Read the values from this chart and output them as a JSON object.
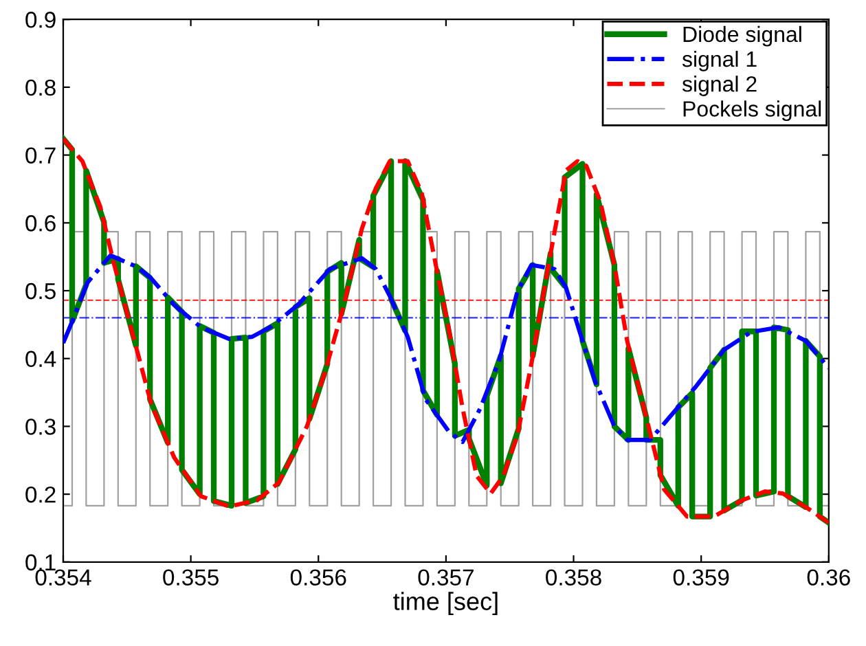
{
  "chart_data": {
    "type": "line",
    "xlabel": "time [sec]",
    "xlim": [
      0.354,
      0.36
    ],
    "xticks": [
      0.354,
      0.355,
      0.356,
      0.357,
      0.358,
      0.359,
      0.36
    ],
    "ylim": [
      0.1,
      0.9
    ],
    "yticks": [
      0.1,
      0.2,
      0.3,
      0.4,
      0.5,
      0.6,
      0.7,
      0.8,
      0.9
    ],
    "grid": false,
    "legend": "top right",
    "ref_lines": [
      {
        "axis": "y",
        "value": 0.486,
        "color": "#ff0000",
        "line_style": "dashed"
      },
      {
        "axis": "y",
        "value": 0.46,
        "color": "#0000ff",
        "line_style": "dashdot"
      }
    ],
    "series": [
      {
        "name": "Diode signal",
        "color": "#008000",
        "line_style": "solid",
        "x": [
          0.354,
          0.35407,
          0.35407,
          0.35418,
          0.35418,
          0.35432,
          0.35432,
          0.35443,
          0.35443,
          0.35457,
          0.35457,
          0.35468,
          0.35468,
          0.35482,
          0.35482,
          0.35493,
          0.35493,
          0.35507,
          0.35507,
          0.35518,
          0.35518,
          0.35532,
          0.35532,
          0.35543,
          0.35543,
          0.35557,
          0.35557,
          0.35568,
          0.35568,
          0.35582,
          0.35582,
          0.35593,
          0.35593,
          0.35607,
          0.35607,
          0.35618,
          0.35618,
          0.35632,
          0.35632,
          0.35643,
          0.35643,
          0.35657,
          0.35657,
          0.35668,
          0.35668,
          0.35682,
          0.35682,
          0.35693,
          0.35693,
          0.35707,
          0.35707,
          0.35718,
          0.35718,
          0.35732,
          0.35732,
          0.35743,
          0.35743,
          0.35757,
          0.35757,
          0.35768,
          0.35768,
          0.35782,
          0.35782,
          0.35793,
          0.35793,
          0.35807,
          0.35807,
          0.35818,
          0.35818,
          0.35832,
          0.35832,
          0.35843,
          0.35843,
          0.35857,
          0.35857,
          0.35868,
          0.35868,
          0.35882,
          0.35882,
          0.35893,
          0.35893,
          0.35907,
          0.35907,
          0.35918,
          0.35918,
          0.35932,
          0.35932,
          0.35943,
          0.35943,
          0.35957,
          0.35957,
          0.35968,
          0.35968,
          0.35982,
          0.35982,
          0.35993,
          0.35993,
          0.36
        ],
        "values": [
          0.724,
          0.708,
          0.455,
          0.509,
          0.677,
          0.601,
          0.541,
          0.547,
          0.517,
          0.419,
          0.536,
          0.519,
          0.34,
          0.276,
          0.49,
          0.469,
          0.236,
          0.2,
          0.448,
          0.438,
          0.19,
          0.183,
          0.429,
          0.431,
          0.187,
          0.197,
          0.44,
          0.452,
          0.215,
          0.266,
          0.476,
          0.489,
          0.311,
          0.392,
          0.528,
          0.541,
          0.466,
          0.575,
          0.548,
          0.535,
          0.64,
          0.691,
          0.488,
          0.441,
          0.691,
          0.634,
          0.353,
          0.317,
          0.529,
          0.392,
          0.286,
          0.295,
          0.282,
          0.213,
          0.345,
          0.404,
          0.216,
          0.297,
          0.503,
          0.538,
          0.404,
          0.555,
          0.533,
          0.507,
          0.667,
          0.687,
          0.426,
          0.362,
          0.642,
          0.538,
          0.3,
          0.28,
          0.415,
          0.313,
          0.28,
          0.28,
          0.228,
          0.183,
          0.328,
          0.349,
          0.167,
          0.167,
          0.386,
          0.413,
          0.176,
          0.191,
          0.44,
          0.44,
          0.198,
          0.204,
          0.446,
          0.442,
          0.197,
          0.181,
          0.426,
          0.403,
          0.167,
          0.158
        ]
      },
      {
        "name": "signal 1",
        "color": "#0000ff",
        "line_style": "dashdot",
        "x": [
          0.354,
          0.35408,
          0.35419,
          0.35437,
          0.35458,
          0.35469,
          0.35487,
          0.35508,
          0.3553,
          0.35548,
          0.35562,
          0.35584,
          0.35609,
          0.35634,
          0.35645,
          0.35656,
          0.3567,
          0.35684,
          0.35702,
          0.35713,
          0.35727,
          0.35742,
          0.35756,
          0.35767,
          0.35785,
          0.35794,
          0.35806,
          0.35817,
          0.35832,
          0.35842,
          0.3586,
          0.35875,
          0.35896,
          0.35918,
          0.35939,
          0.35961,
          0.35982,
          0.36
        ],
        "values": [
          0.423,
          0.459,
          0.512,
          0.552,
          0.535,
          0.518,
          0.479,
          0.446,
          0.429,
          0.432,
          0.446,
          0.479,
          0.532,
          0.548,
          0.532,
          0.492,
          0.432,
          0.34,
          0.293,
          0.277,
          0.327,
          0.399,
          0.499,
          0.538,
          0.532,
          0.505,
          0.432,
          0.366,
          0.3,
          0.28,
          0.28,
          0.313,
          0.359,
          0.413,
          0.439,
          0.446,
          0.426,
          0.386
        ]
      },
      {
        "name": "signal 2",
        "color": "#ff0000",
        "line_style": "dashed",
        "x": [
          0.354,
          0.35415,
          0.35429,
          0.3544,
          0.35455,
          0.35469,
          0.35487,
          0.35508,
          0.3553,
          0.35552,
          0.35569,
          0.35591,
          0.35605,
          0.3562,
          0.35634,
          0.35645,
          0.35656,
          0.3567,
          0.35681,
          0.35692,
          0.35702,
          0.35713,
          0.35724,
          0.35735,
          0.35745,
          0.35756,
          0.35767,
          0.35781,
          0.35794,
          0.35803,
          0.3581,
          0.35821,
          0.35832,
          0.35842,
          0.35857,
          0.35871,
          0.35889,
          0.3591,
          0.35932,
          0.3595,
          0.35964,
          0.35982,
          0.36
        ],
        "values": [
          0.724,
          0.691,
          0.624,
          0.538,
          0.432,
          0.333,
          0.254,
          0.197,
          0.182,
          0.191,
          0.217,
          0.3,
          0.379,
          0.479,
          0.591,
          0.651,
          0.691,
          0.691,
          0.644,
          0.538,
          0.446,
          0.327,
          0.227,
          0.201,
          0.227,
          0.287,
          0.393,
          0.545,
          0.677,
          0.691,
          0.684,
          0.631,
          0.538,
          0.426,
          0.313,
          0.207,
          0.167,
          0.167,
          0.191,
          0.204,
          0.201,
          0.181,
          0.158
        ]
      },
      {
        "name": "Pockels signal",
        "color": "#a0a0a0",
        "line_style": "solid",
        "x": [
          0.354,
          0.35407,
          0.35407,
          0.35418,
          0.35418,
          0.35432,
          0.35432,
          0.35443,
          0.35443,
          0.35457,
          0.35457,
          0.35468,
          0.35468,
          0.35482,
          0.35482,
          0.35493,
          0.35493,
          0.35507,
          0.35507,
          0.35518,
          0.35518,
          0.35532,
          0.35532,
          0.35543,
          0.35543,
          0.35557,
          0.35557,
          0.35568,
          0.35568,
          0.35582,
          0.35582,
          0.35593,
          0.35593,
          0.35607,
          0.35607,
          0.35618,
          0.35618,
          0.35632,
          0.35632,
          0.35643,
          0.35643,
          0.35657,
          0.35657,
          0.35668,
          0.35668,
          0.35682,
          0.35682,
          0.35693,
          0.35693,
          0.35707,
          0.35707,
          0.35718,
          0.35718,
          0.35732,
          0.35732,
          0.35743,
          0.35743,
          0.35757,
          0.35757,
          0.35768,
          0.35768,
          0.35782,
          0.35782,
          0.35793,
          0.35793,
          0.35807,
          0.35807,
          0.35818,
          0.35818,
          0.35832,
          0.35832,
          0.35843,
          0.35843,
          0.35857,
          0.35857,
          0.35868,
          0.35868,
          0.35882,
          0.35882,
          0.35893,
          0.35893,
          0.35907,
          0.35907,
          0.35918,
          0.35918,
          0.35932,
          0.35932,
          0.35943,
          0.35943,
          0.35957,
          0.35957,
          0.35968,
          0.35968,
          0.35982,
          0.35982,
          0.35993,
          0.35993,
          0.36
        ],
        "values": [
          0.183,
          0.183,
          0.587,
          0.587,
          0.183,
          0.183,
          0.587,
          0.587,
          0.183,
          0.183,
          0.587,
          0.587,
          0.183,
          0.183,
          0.587,
          0.587,
          0.183,
          0.183,
          0.587,
          0.587,
          0.183,
          0.183,
          0.587,
          0.587,
          0.183,
          0.183,
          0.587,
          0.587,
          0.183,
          0.183,
          0.587,
          0.587,
          0.183,
          0.183,
          0.587,
          0.587,
          0.183,
          0.183,
          0.587,
          0.587,
          0.183,
          0.183,
          0.587,
          0.587,
          0.183,
          0.183,
          0.587,
          0.587,
          0.183,
          0.183,
          0.587,
          0.587,
          0.183,
          0.183,
          0.587,
          0.587,
          0.183,
          0.183,
          0.587,
          0.587,
          0.183,
          0.183,
          0.587,
          0.587,
          0.183,
          0.183,
          0.587,
          0.587,
          0.183,
          0.183,
          0.587,
          0.587,
          0.183,
          0.183,
          0.587,
          0.587,
          0.183,
          0.183,
          0.587,
          0.587,
          0.183,
          0.183,
          0.587,
          0.587,
          0.183,
          0.183,
          0.587,
          0.587,
          0.183,
          0.183,
          0.587,
          0.587,
          0.183,
          0.183,
          0.587,
          0.587,
          0.183,
          0.183
        ]
      }
    ]
  }
}
